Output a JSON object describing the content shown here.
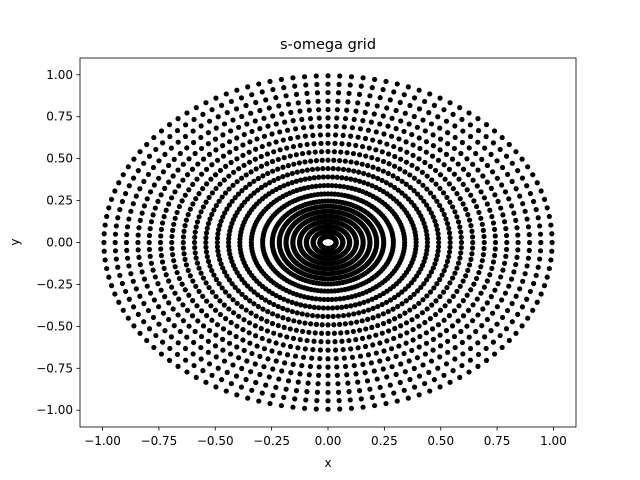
{
  "chart_data": {
    "type": "scatter",
    "title": "s-omega grid",
    "xlabel": "x",
    "ylabel": "y",
    "xlim": [
      -1.1,
      1.1
    ],
    "ylim": [
      -1.1,
      1.1
    ],
    "xticks": [
      -1.0,
      -0.75,
      -0.5,
      -0.25,
      0.0,
      0.25,
      0.5,
      0.75,
      1.0
    ],
    "yticks": [
      -1.0,
      -0.75,
      -0.5,
      -0.25,
      0.0,
      0.25,
      0.5,
      0.75,
      1.0
    ],
    "xtick_labels": [
      "−1.00",
      "−0.75",
      "−0.50",
      "−0.25",
      "0.00",
      "0.25",
      "0.50",
      "0.75",
      "1.00"
    ],
    "ytick_labels": [
      "−1.00",
      "−0.75",
      "−0.50",
      "−0.25",
      "0.00",
      "0.25",
      "0.50",
      "0.75",
      "1.00"
    ],
    "grid": false,
    "marker": "circle",
    "marker_color": "#000000",
    "series": [
      {
        "radii": [
          0.036,
          0.066,
          0.096,
          0.126,
          0.156,
          0.186,
          0.216,
          0.247,
          0.29,
          0.34,
          0.391,
          0.441,
          0.491,
          0.542,
          0.592,
          0.642,
          0.693,
          0.743,
          0.793,
          0.843,
          0.894,
          0.944,
          0.994
        ],
        "angles_per_ring": 120,
        "description_of_points": "points at angles 2*pi*k/120, k=0..119, on each ring radius"
      }
    ]
  }
}
